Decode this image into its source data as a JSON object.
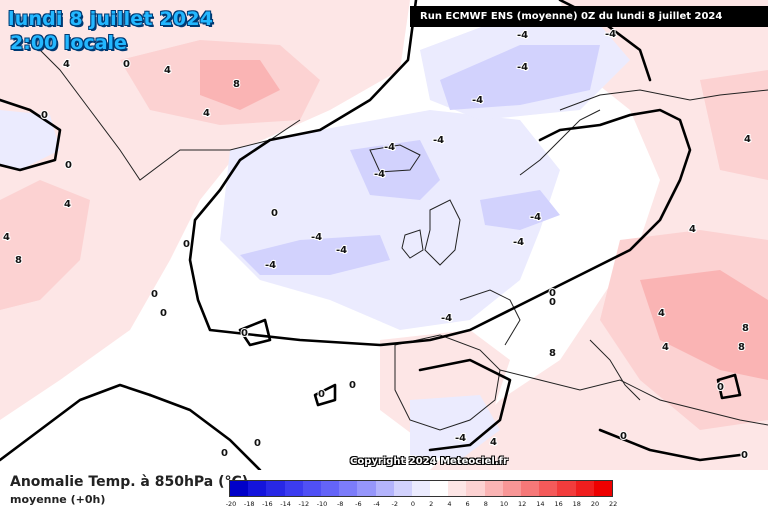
{
  "header": {
    "date": "lundi 8 juillet 2024",
    "local_time": "2:00 locale",
    "run_info": "Run ECMWF ENS (moyenne) 0Z du lundi 8 juillet 2024"
  },
  "map": {
    "copyright": "Copyright 2024 Meteociel.fr",
    "contour_labels": [
      "-4",
      "-4",
      "-4",
      "-4",
      "-4",
      "-4",
      "-4",
      "-4",
      "-4",
      "-4",
      "-4",
      "-4",
      "-4",
      "-4",
      "0",
      "0",
      "0",
      "0",
      "0",
      "0",
      "0",
      "0",
      "0",
      "0",
      "0",
      "0",
      "0",
      "0",
      "0",
      "0",
      "0",
      "4",
      "4",
      "4",
      "4",
      "4",
      "4",
      "4",
      "4",
      "4",
      "4",
      "8",
      "8",
      "8",
      "8",
      "8"
    ]
  },
  "legend": {
    "title": "Anomalie Temp. à 850hPa (°C)",
    "subtitle": "moyenne   (+0h)",
    "ticks": [
      "-20",
      "-18",
      "-16",
      "-14",
      "-12",
      "-10",
      "-8",
      "-6",
      "-4",
      "-2",
      "0",
      "2",
      "4",
      "6",
      "8",
      "10",
      "12",
      "14",
      "16",
      "18",
      "20",
      "22"
    ],
    "colors": [
      "#0000c8",
      "#1414dc",
      "#2828e6",
      "#3c3cf0",
      "#5050f5",
      "#6464f8",
      "#7c7cfa",
      "#9696fb",
      "#b4b4fc",
      "#d2d2fd",
      "#ebebfe",
      "#ffffff",
      "#fde6e6",
      "#fcd2d2",
      "#fab4b4",
      "#f89696",
      "#f67878",
      "#f45a5a",
      "#f23c3c",
      "#f01e1e",
      "#ee0000",
      "#d00000"
    ]
  }
}
